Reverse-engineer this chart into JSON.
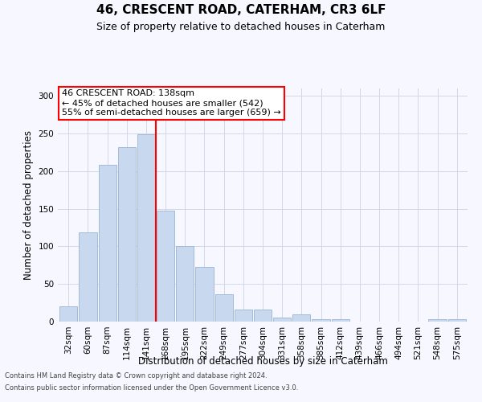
{
  "title1": "46, CRESCENT ROAD, CATERHAM, CR3 6LF",
  "title2": "Size of property relative to detached houses in Caterham",
  "xlabel": "Distribution of detached houses by size in Caterham",
  "ylabel": "Number of detached properties",
  "categories": [
    "32sqm",
    "60sqm",
    "87sqm",
    "114sqm",
    "141sqm",
    "168sqm",
    "195sqm",
    "222sqm",
    "249sqm",
    "277sqm",
    "304sqm",
    "331sqm",
    "358sqm",
    "385sqm",
    "412sqm",
    "439sqm",
    "466sqm",
    "494sqm",
    "521sqm",
    "548sqm",
    "575sqm"
  ],
  "values": [
    20,
    119,
    208,
    232,
    249,
    147,
    101,
    73,
    36,
    16,
    16,
    5,
    10,
    3,
    3,
    0,
    0,
    0,
    0,
    3,
    3
  ],
  "bar_color": "#c8d8ee",
  "bar_edgecolor": "#9ab4d4",
  "vline_x": 4.5,
  "annotation_text": "46 CRESCENT ROAD: 138sqm\n← 45% of detached houses are smaller (542)\n55% of semi-detached houses are larger (659) →",
  "annotation_box_color": "white",
  "annotation_box_edgecolor": "red",
  "vline_color": "red",
  "ylim": [
    0,
    310
  ],
  "yticks": [
    0,
    50,
    100,
    150,
    200,
    250,
    300
  ],
  "footer1": "Contains HM Land Registry data © Crown copyright and database right 2024.",
  "footer2": "Contains public sector information licensed under the Open Government Licence v3.0.",
  "bg_color": "#f7f7ff",
  "grid_color": "#d0d8e8",
  "title1_fontsize": 11,
  "title2_fontsize": 9,
  "ylabel_fontsize": 8.5,
  "xlabel_fontsize": 8.5,
  "tick_fontsize": 7.5,
  "annotation_fontsize": 8,
  "footer_fontsize": 6
}
